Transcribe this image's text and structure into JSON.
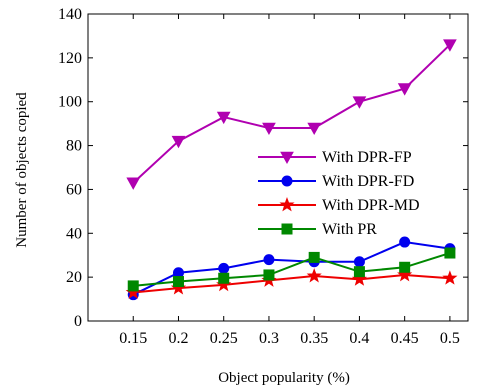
{
  "chart_data": {
    "type": "line",
    "title": "",
    "xlabel": "Object popularity (%)",
    "ylabel": "Number of objects copied",
    "x": [
      0.15,
      0.2,
      0.25,
      0.3,
      0.35,
      0.4,
      0.45,
      0.5
    ],
    "x_tick_labels": [
      "0.15",
      "0.2",
      "0.25",
      "0.3",
      "0.35",
      "0.4",
      "0.45",
      "0.5"
    ],
    "xlim": [
      0.1,
      0.52
    ],
    "ylim": [
      0,
      140
    ],
    "y_ticks": [
      0,
      20,
      40,
      60,
      80,
      100,
      120,
      140
    ],
    "y_tick_labels": [
      "0",
      "20",
      "40",
      "60",
      "80",
      "100",
      "120",
      "140"
    ],
    "grid": false,
    "legend_position": "center-right",
    "series": [
      {
        "name": "With DPR-FP",
        "color": "#b000b0",
        "marker": "triangle-down",
        "values": [
          63,
          82,
          93,
          88,
          88,
          100,
          106,
          126
        ]
      },
      {
        "name": "With DPR-FD",
        "color": "#0000ee",
        "marker": "circle",
        "values": [
          12,
          22,
          24,
          28,
          27,
          27,
          36,
          33
        ]
      },
      {
        "name": "With DPR-MD",
        "color": "#ee0000",
        "marker": "star",
        "values": [
          13,
          15,
          16.5,
          18.5,
          20.5,
          19,
          21,
          19.5
        ]
      },
      {
        "name": "With PR",
        "color": "#008800",
        "marker": "square",
        "values": [
          16,
          18,
          19.5,
          21,
          29,
          22.5,
          24.5,
          31
        ]
      }
    ]
  }
}
